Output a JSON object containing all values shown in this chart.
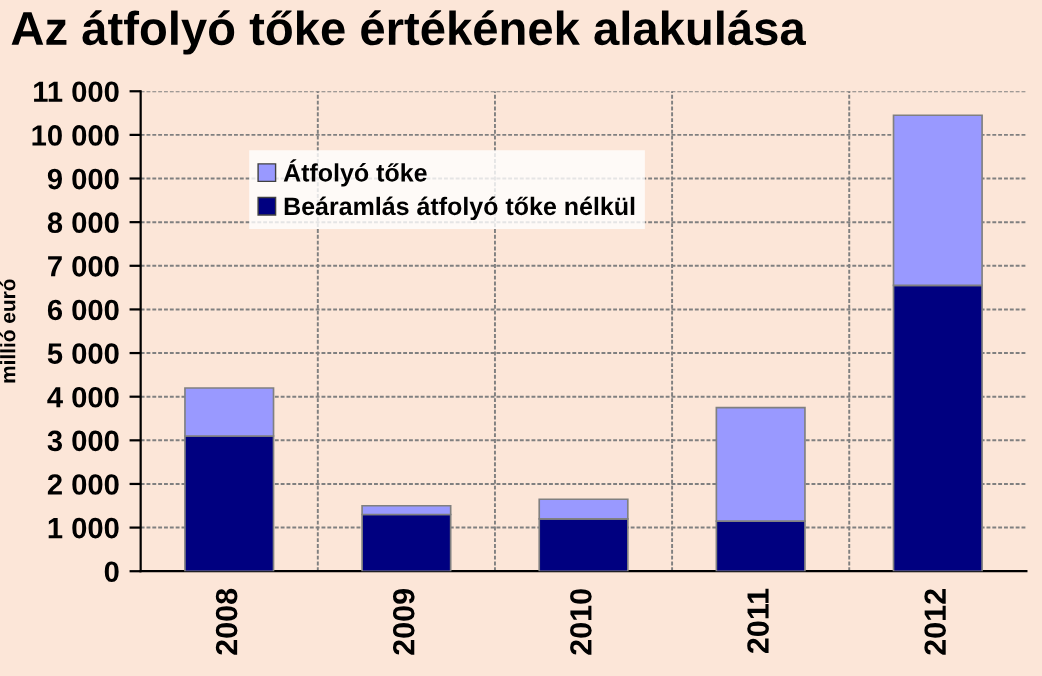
{
  "chart_data": {
    "type": "bar",
    "title": "Az átfolyó tőke értékének alakulása",
    "ylabel": "millió euró",
    "categories": [
      "2008",
      "2009",
      "2010",
      "2011",
      "2012"
    ],
    "stacked": true,
    "series": [
      {
        "name": "Beáramlás átfolyó tőke nélkül",
        "color": "#000080",
        "values": [
          3100,
          1300,
          1200,
          1150,
          6550
        ]
      },
      {
        "name": "Átfolyó tőke",
        "color": "#9999ff",
        "values": [
          1100,
          200,
          450,
          2600,
          3900
        ]
      }
    ],
    "ylim": [
      0,
      11000
    ],
    "yticks": [
      0,
      {
        "value": 1000,
        "label": "1 000"
      },
      {
        "value": 2000,
        "label": "2 000"
      },
      {
        "value": 3000,
        "label": "3 000"
      },
      {
        "value": 4000,
        "label": "4 000"
      },
      {
        "value": 5000,
        "label": "5 000"
      },
      {
        "value": 6000,
        "label": "6 000"
      },
      {
        "value": 7000,
        "label": "7 000"
      },
      {
        "value": 8000,
        "label": "8 000"
      },
      {
        "value": 9000,
        "label": "9 000"
      },
      {
        "value": 10000,
        "label": "10 000"
      },
      {
        "value": 11000,
        "label": "11 000"
      }
    ],
    "grid": true,
    "legend": "top left"
  }
}
